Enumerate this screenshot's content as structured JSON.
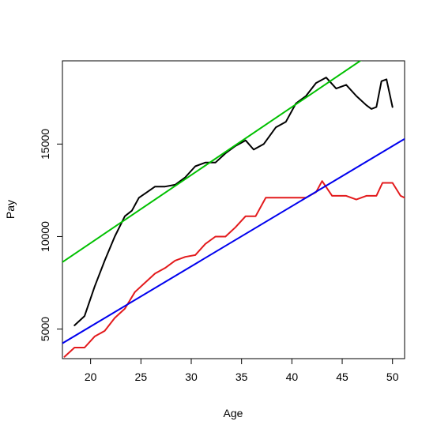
{
  "chart_data": {
    "type": "line",
    "title": "",
    "xlabel": "Age",
    "ylabel": "Pay",
    "xlim": [
      17.2,
      51.2
    ],
    "ylim": [
      3400,
      19500
    ],
    "x_ticks": [
      20,
      25,
      30,
      35,
      40,
      45,
      50
    ],
    "y_ticks": [
      5000,
      10000,
      15000
    ],
    "grid": false,
    "legend": "none",
    "series": [
      {
        "color": "#000000",
        "style": "line",
        "points": [
          [
            18.4,
            5200
          ],
          [
            19.4,
            5700
          ],
          [
            20.4,
            7300
          ],
          [
            21.4,
            8700
          ],
          [
            22.4,
            10000
          ],
          [
            23.4,
            11100
          ],
          [
            24.1,
            11400
          ],
          [
            24.8,
            12100
          ],
          [
            25.6,
            12400
          ],
          [
            26.4,
            12700
          ],
          [
            27.4,
            12700
          ],
          [
            28.4,
            12800
          ],
          [
            29.4,
            13200
          ],
          [
            30.4,
            13800
          ],
          [
            31.4,
            14000
          ],
          [
            32.4,
            14000
          ],
          [
            33.4,
            14500
          ],
          [
            34.4,
            14900
          ],
          [
            35.4,
            15200
          ],
          [
            36.2,
            14700
          ],
          [
            37.2,
            15000
          ],
          [
            38.4,
            15900
          ],
          [
            39.4,
            16200
          ],
          [
            40.4,
            17200
          ],
          [
            41.4,
            17600
          ],
          [
            42.4,
            18300
          ],
          [
            43.4,
            18600
          ],
          [
            44.4,
            18000
          ],
          [
            45.4,
            18200
          ],
          [
            46.4,
            17600
          ],
          [
            47.4,
            17100
          ],
          [
            47.9,
            16900
          ],
          [
            48.4,
            17000
          ],
          [
            48.9,
            18400
          ],
          [
            49.4,
            18500
          ],
          [
            50.0,
            17000
          ]
        ]
      },
      {
        "color": "#e31a1c",
        "style": "line",
        "points": [
          [
            17.4,
            3500
          ],
          [
            18.4,
            4000
          ],
          [
            19.4,
            4000
          ],
          [
            20.4,
            4600
          ],
          [
            21.4,
            4900
          ],
          [
            22.4,
            5600
          ],
          [
            23.4,
            6100
          ],
          [
            24.4,
            7000
          ],
          [
            25.4,
            7500
          ],
          [
            26.4,
            8000
          ],
          [
            27.4,
            8300
          ],
          [
            28.4,
            8700
          ],
          [
            29.4,
            8900
          ],
          [
            30.4,
            9000
          ],
          [
            31.4,
            9600
          ],
          [
            32.4,
            10000
          ],
          [
            33.4,
            10000
          ],
          [
            34.4,
            10500
          ],
          [
            35.4,
            11100
          ],
          [
            36.4,
            11100
          ],
          [
            37.4,
            12100
          ],
          [
            38.4,
            12100
          ],
          [
            39.4,
            12100
          ],
          [
            40.4,
            12100
          ],
          [
            41.4,
            12100
          ],
          [
            42.4,
            12400
          ],
          [
            43.0,
            13000
          ],
          [
            44.0,
            12200
          ],
          [
            45.4,
            12200
          ],
          [
            46.4,
            12000
          ],
          [
            47.4,
            12200
          ],
          [
            48.4,
            12200
          ],
          [
            49.0,
            12900
          ],
          [
            50.0,
            12900
          ],
          [
            50.8,
            12200
          ],
          [
            51.2,
            12100
          ]
        ]
      },
      {
        "color": "#00c000",
        "style": "straight",
        "points": [
          [
            17.2,
            8620
          ],
          [
            51.2,
            21120
          ]
        ]
      },
      {
        "color": "#0000ee",
        "style": "straight",
        "points": [
          [
            17.2,
            4230
          ],
          [
            51.2,
            15280
          ]
        ]
      }
    ]
  }
}
